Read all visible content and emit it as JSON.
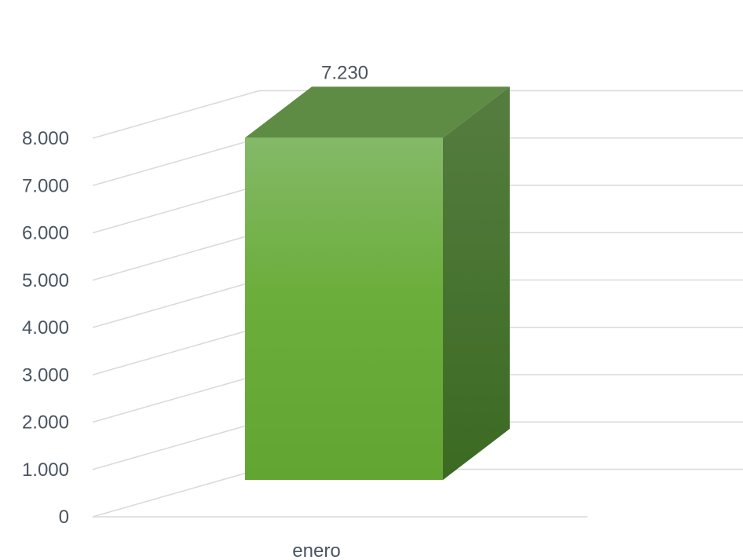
{
  "chart_data": {
    "type": "bar",
    "style": "3d-column",
    "categories": [
      "enero"
    ],
    "series": [
      {
        "values": [
          7230
        ],
        "color": "#6aac3a"
      }
    ],
    "data_labels": [
      "7.230"
    ],
    "y_ticks": [
      "0",
      "1.000",
      "2.000",
      "3.000",
      "4.000",
      "5.000",
      "6.000",
      "7.000",
      "8.000"
    ],
    "ylim": [
      0,
      8000
    ],
    "grid": true,
    "legend": "none"
  }
}
